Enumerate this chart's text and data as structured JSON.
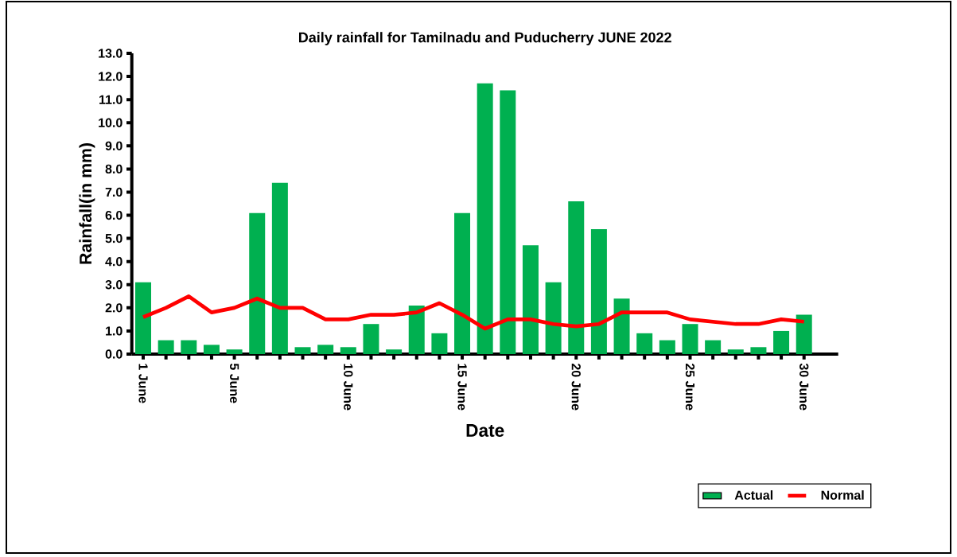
{
  "chart_data": {
    "type": "bar",
    "title": "Daily rainfall for Tamilnadu and Puducherry JUNE  2022",
    "xlabel": "Date",
    "ylabel": "Rainfall(in mm)",
    "categories": [
      "1 June",
      null,
      null,
      null,
      "5 June",
      null,
      null,
      null,
      null,
      "10 June",
      null,
      null,
      null,
      null,
      "15 June",
      null,
      null,
      null,
      null,
      "20 June",
      null,
      null,
      null,
      null,
      "25 June",
      null,
      null,
      null,
      null,
      "30 June"
    ],
    "series": [
      {
        "name": "Actual",
        "color": "#00b050",
        "values": [
          3.1,
          0.6,
          0.6,
          0.4,
          0.2,
          6.1,
          7.4,
          0.3,
          0.4,
          0.3,
          1.3,
          0.2,
          2.1,
          0.9,
          6.1,
          11.7,
          11.4,
          4.7,
          3.1,
          6.6,
          5.4,
          2.4,
          0.9,
          0.6,
          1.3,
          0.6,
          0.2,
          0.3,
          1.0,
          1.7
        ]
      },
      {
        "name": "Normal",
        "type": "line",
        "color": "#ff0000",
        "values": [
          1.6,
          2.0,
          2.5,
          1.8,
          2.0,
          2.4,
          2.0,
          2.0,
          1.5,
          1.5,
          1.7,
          1.7,
          1.8,
          2.2,
          1.7,
          1.1,
          1.5,
          1.5,
          1.3,
          1.2,
          1.3,
          1.8,
          1.8,
          1.8,
          1.5,
          1.4,
          1.3,
          1.3,
          1.5,
          1.4
        ]
      }
    ],
    "ylim": [
      0,
      13
    ],
    "yticks": [
      {
        "value": 0,
        "label": "0.0"
      },
      {
        "value": 1,
        "label": "1.0"
      },
      {
        "value": 2,
        "label": "2.0"
      },
      {
        "value": 3,
        "label": "3.0"
      },
      {
        "value": 4,
        "label": "4.0"
      },
      {
        "value": 5,
        "label": "5.0"
      },
      {
        "value": 6,
        "label": "6.0"
      },
      {
        "value": 7,
        "label": "7.0"
      },
      {
        "value": 8,
        "label": "8.0"
      },
      {
        "value": 9,
        "label": "9.0"
      },
      {
        "value": 10,
        "label": "10.0"
      },
      {
        "value": 11,
        "label": "11.0"
      },
      {
        "value": 12,
        "label": "12.0"
      },
      {
        "value": 13,
        "label": "13.0"
      }
    ],
    "legend": "bottom right",
    "marker": "none"
  }
}
